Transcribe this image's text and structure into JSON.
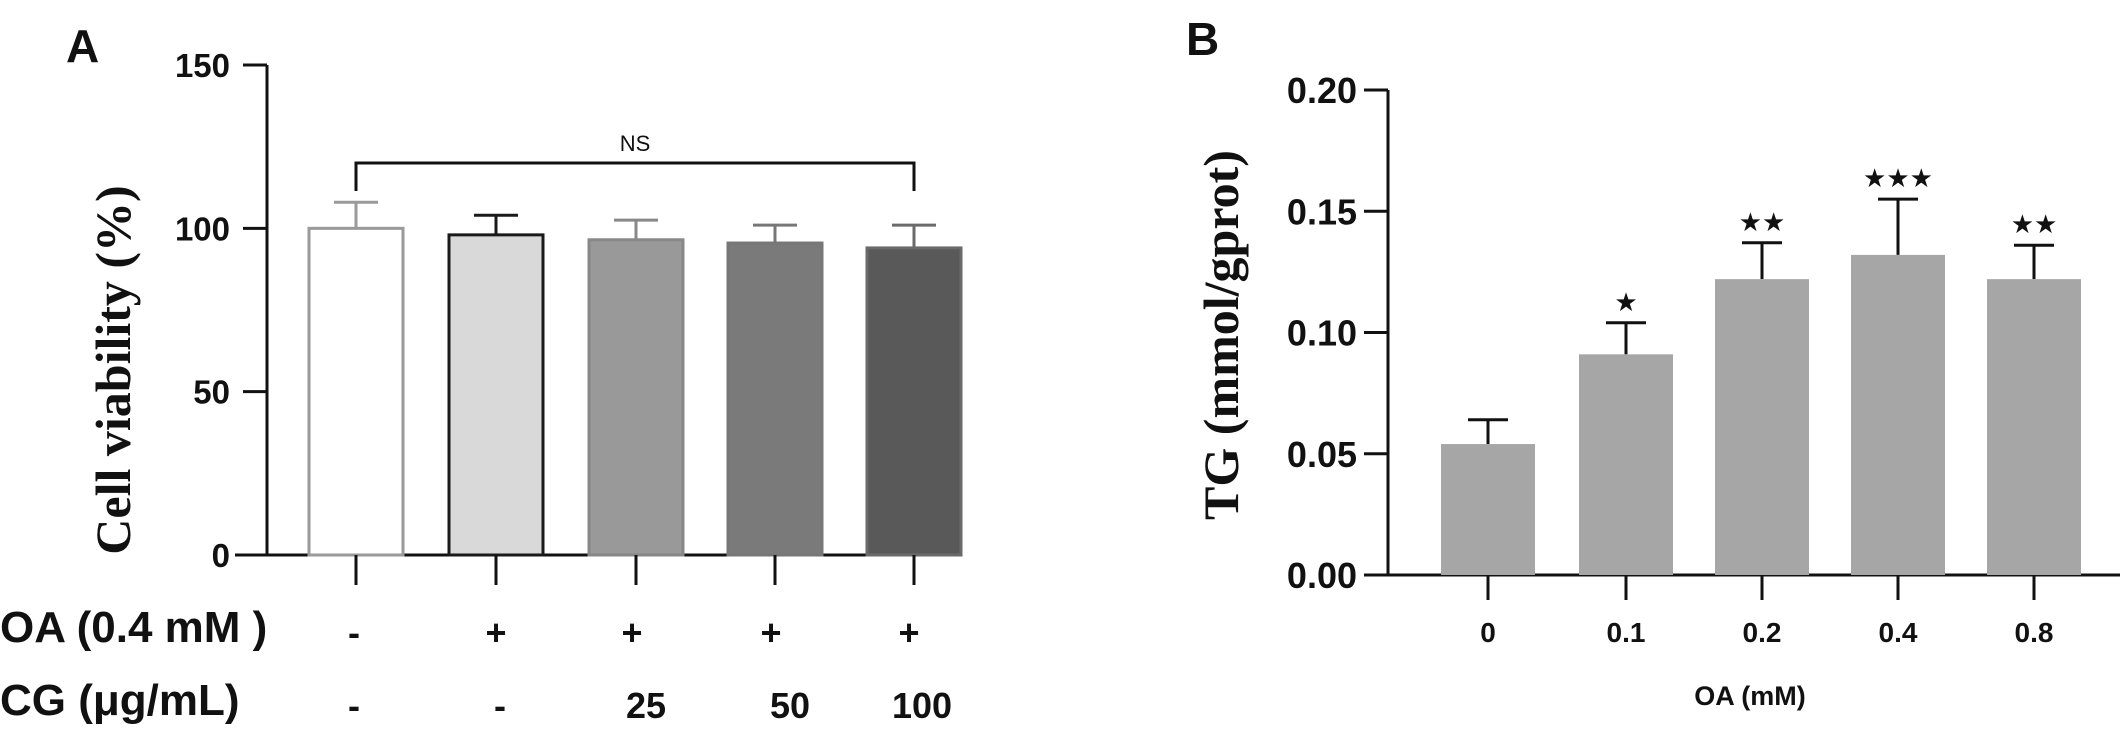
{
  "chart_data": [
    {
      "panel": "A",
      "type": "bar",
      "ylabel": "Cell viability (%)",
      "ylim": [
        0,
        150
      ],
      "yticks": [
        "0",
        "50",
        "100",
        "150"
      ],
      "values": [
        100,
        98,
        96.5,
        95.5,
        94
      ],
      "errors": [
        8,
        6,
        6,
        5.5,
        7
      ],
      "bar_fills": [
        "#ffffff",
        "#d9d9d9",
        "#999999",
        "#7a7a7a",
        "#595959"
      ],
      "bar_strokes": [
        "#9a9a9a",
        "#1a1a1a",
        "#888888",
        "#777777",
        "#6a6a6a"
      ],
      "conditions": [
        {
          "label": "OA (0.4 mM )",
          "values": [
            "-",
            "+",
            "+",
            "+",
            "+"
          ]
        },
        {
          "label": "CG (μg/mL)",
          "values": [
            "-",
            "-",
            "25",
            "50",
            "100"
          ]
        }
      ],
      "annotation": "NS"
    },
    {
      "panel": "B",
      "type": "bar",
      "xlabel": "OA (mM)",
      "ylabel": "TG (mmol/gprot)",
      "categories": [
        "0",
        "0.1",
        "0.2",
        "0.4",
        "0.8"
      ],
      "values": [
        0.054,
        0.091,
        0.122,
        0.132,
        0.122
      ],
      "errors": [
        0.01,
        0.013,
        0.015,
        0.023,
        0.014
      ],
      "significance": [
        "",
        "★",
        "★★",
        "★★★",
        "★★"
      ],
      "ylim": [
        0,
        0.2
      ],
      "yticks": [
        "0.00",
        "0.05",
        "0.10",
        "0.15",
        "0.20"
      ],
      "bar_color": "#a6a6a6"
    }
  ]
}
